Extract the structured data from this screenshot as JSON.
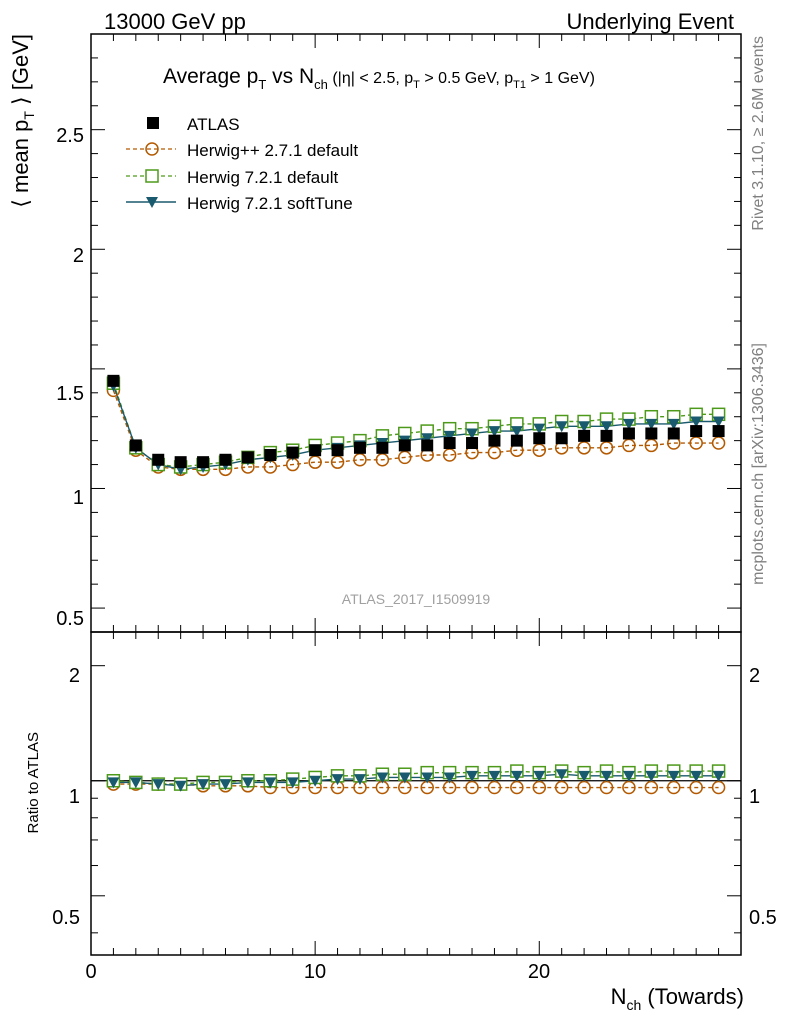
{
  "header": {
    "left": "13000 GeV pp",
    "right": "Underlying Event"
  },
  "side_text": {
    "rivet": "Rivet 3.1.10, ≥ 2.6M events",
    "mcplots": "mcplots.cern.ch [arXiv:1306.3436]"
  },
  "chart_data": {
    "type": "scatter",
    "title": "Average pT vs Nch (|η| < 2.5, pT > 0.5 GeV, pT1 > 1 GeV)",
    "title_parts": {
      "a": "Average p",
      "a_sub": "T",
      "b": " vs N",
      "b_sub": "ch",
      "c": " (|η| < 2.5, p",
      "c_sub": "T",
      "d": " > 0.5 GeV, p",
      "d_sub": "T1",
      "e": " > 1 GeV)"
    },
    "ylabel_parts": {
      "a": "⟨ mean p",
      "sub": "T",
      "b": " ⟩ [GeV]"
    },
    "xlabel_parts": {
      "a": "N",
      "sub": "ch",
      "b": " (Towards)"
    },
    "ratio_ylabel": "Ratio to ATLAS",
    "watermark": "ATLAS_2017_I1509919",
    "xlim": [
      0,
      29
    ],
    "ylim": [
      0.4,
      2.9
    ],
    "ratio_ylim": [
      0.35,
      2.45
    ],
    "xticks": [
      "0",
      "10",
      "20"
    ],
    "yticks": [
      "0.5",
      "1",
      "1.5",
      "2",
      "2.5"
    ],
    "ratio_yticks": [
      "0.5",
      "1",
      "2"
    ],
    "legend_position": "top-left",
    "x": [
      1,
      2,
      3,
      4,
      5,
      6,
      7,
      8,
      9,
      10,
      11,
      12,
      13,
      14,
      15,
      16,
      17,
      18,
      19,
      20,
      21,
      22,
      23,
      24,
      25,
      26,
      27,
      28
    ],
    "series": [
      {
        "name": "ATLAS",
        "color": "#000000",
        "marker": "filled-square",
        "values": [
          1.45,
          1.18,
          1.12,
          1.11,
          1.11,
          1.12,
          1.13,
          1.14,
          1.15,
          1.16,
          1.16,
          1.17,
          1.17,
          1.18,
          1.18,
          1.19,
          1.19,
          1.2,
          1.2,
          1.21,
          1.21,
          1.22,
          1.22,
          1.23,
          1.23,
          1.23,
          1.24,
          1.24
        ]
      },
      {
        "name": "Herwig++ 2.7.1 default",
        "color": "#b35900",
        "marker": "open-circle",
        "line": "dashed",
        "values": [
          1.41,
          1.16,
          1.09,
          1.08,
          1.08,
          1.08,
          1.09,
          1.09,
          1.1,
          1.11,
          1.11,
          1.12,
          1.12,
          1.13,
          1.14,
          1.14,
          1.15,
          1.15,
          1.16,
          1.16,
          1.17,
          1.17,
          1.17,
          1.18,
          1.18,
          1.19,
          1.19,
          1.19
        ],
        "ratio": [
          0.98,
          0.98,
          0.98,
          0.98,
          0.97,
          0.97,
          0.97,
          0.96,
          0.96,
          0.96,
          0.96,
          0.96,
          0.96,
          0.96,
          0.96,
          0.96,
          0.96,
          0.96,
          0.96,
          0.96,
          0.96,
          0.96,
          0.96,
          0.96,
          0.96,
          0.96,
          0.96,
          0.96
        ]
      },
      {
        "name": "Herwig 7.2.1 default",
        "color": "#4d9a1a",
        "marker": "open-square",
        "line": "dashed",
        "values": [
          1.44,
          1.17,
          1.1,
          1.09,
          1.1,
          1.11,
          1.13,
          1.15,
          1.16,
          1.18,
          1.19,
          1.2,
          1.22,
          1.23,
          1.24,
          1.25,
          1.25,
          1.26,
          1.27,
          1.27,
          1.28,
          1.28,
          1.29,
          1.29,
          1.3,
          1.3,
          1.31,
          1.31
        ],
        "ratio": [
          1.0,
          0.99,
          0.98,
          0.98,
          0.99,
          0.99,
          1.0,
          1.0,
          1.01,
          1.02,
          1.03,
          1.03,
          1.04,
          1.04,
          1.05,
          1.05,
          1.05,
          1.05,
          1.06,
          1.05,
          1.06,
          1.05,
          1.06,
          1.05,
          1.06,
          1.06,
          1.06,
          1.06
        ]
      },
      {
        "name": "Herwig 7.2.1 softTune",
        "color": "#1a5a6e",
        "marker": "filled-triangle-down",
        "line": "solid",
        "values": [
          1.43,
          1.17,
          1.1,
          1.08,
          1.09,
          1.1,
          1.12,
          1.13,
          1.14,
          1.16,
          1.17,
          1.18,
          1.19,
          1.2,
          1.21,
          1.22,
          1.23,
          1.24,
          1.24,
          1.25,
          1.26,
          1.26,
          1.26,
          1.27,
          1.27,
          1.27,
          1.28,
          1.28
        ],
        "ratio": [
          0.99,
          0.99,
          0.98,
          0.97,
          0.98,
          0.98,
          0.99,
          0.99,
          0.99,
          1.0,
          1.01,
          1.01,
          1.02,
          1.02,
          1.02,
          1.02,
          1.03,
          1.03,
          1.03,
          1.03,
          1.04,
          1.03,
          1.03,
          1.03,
          1.03,
          1.03,
          1.03,
          1.03
        ]
      }
    ]
  }
}
